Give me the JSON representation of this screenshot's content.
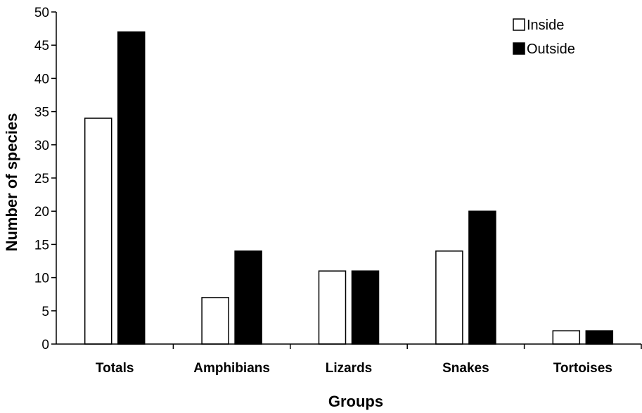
{
  "chart_data": {
    "type": "bar",
    "title": "",
    "xlabel": "Groups",
    "ylabel": "Number of species",
    "ylim": [
      0,
      50
    ],
    "yticks": [
      0,
      5,
      10,
      15,
      20,
      25,
      30,
      35,
      40,
      45,
      50
    ],
    "categories": [
      "Totals",
      "Amphibians",
      "Lizards",
      "Snakes",
      "Tortoises"
    ],
    "series": [
      {
        "name": "Inside",
        "color": "#ffffff",
        "values": [
          34,
          7,
          11,
          14,
          2
        ]
      },
      {
        "name": "Outside",
        "color": "#000000",
        "values": [
          47,
          14,
          11,
          20,
          2
        ]
      }
    ],
    "legend_position": "top-right",
    "grid": false
  }
}
